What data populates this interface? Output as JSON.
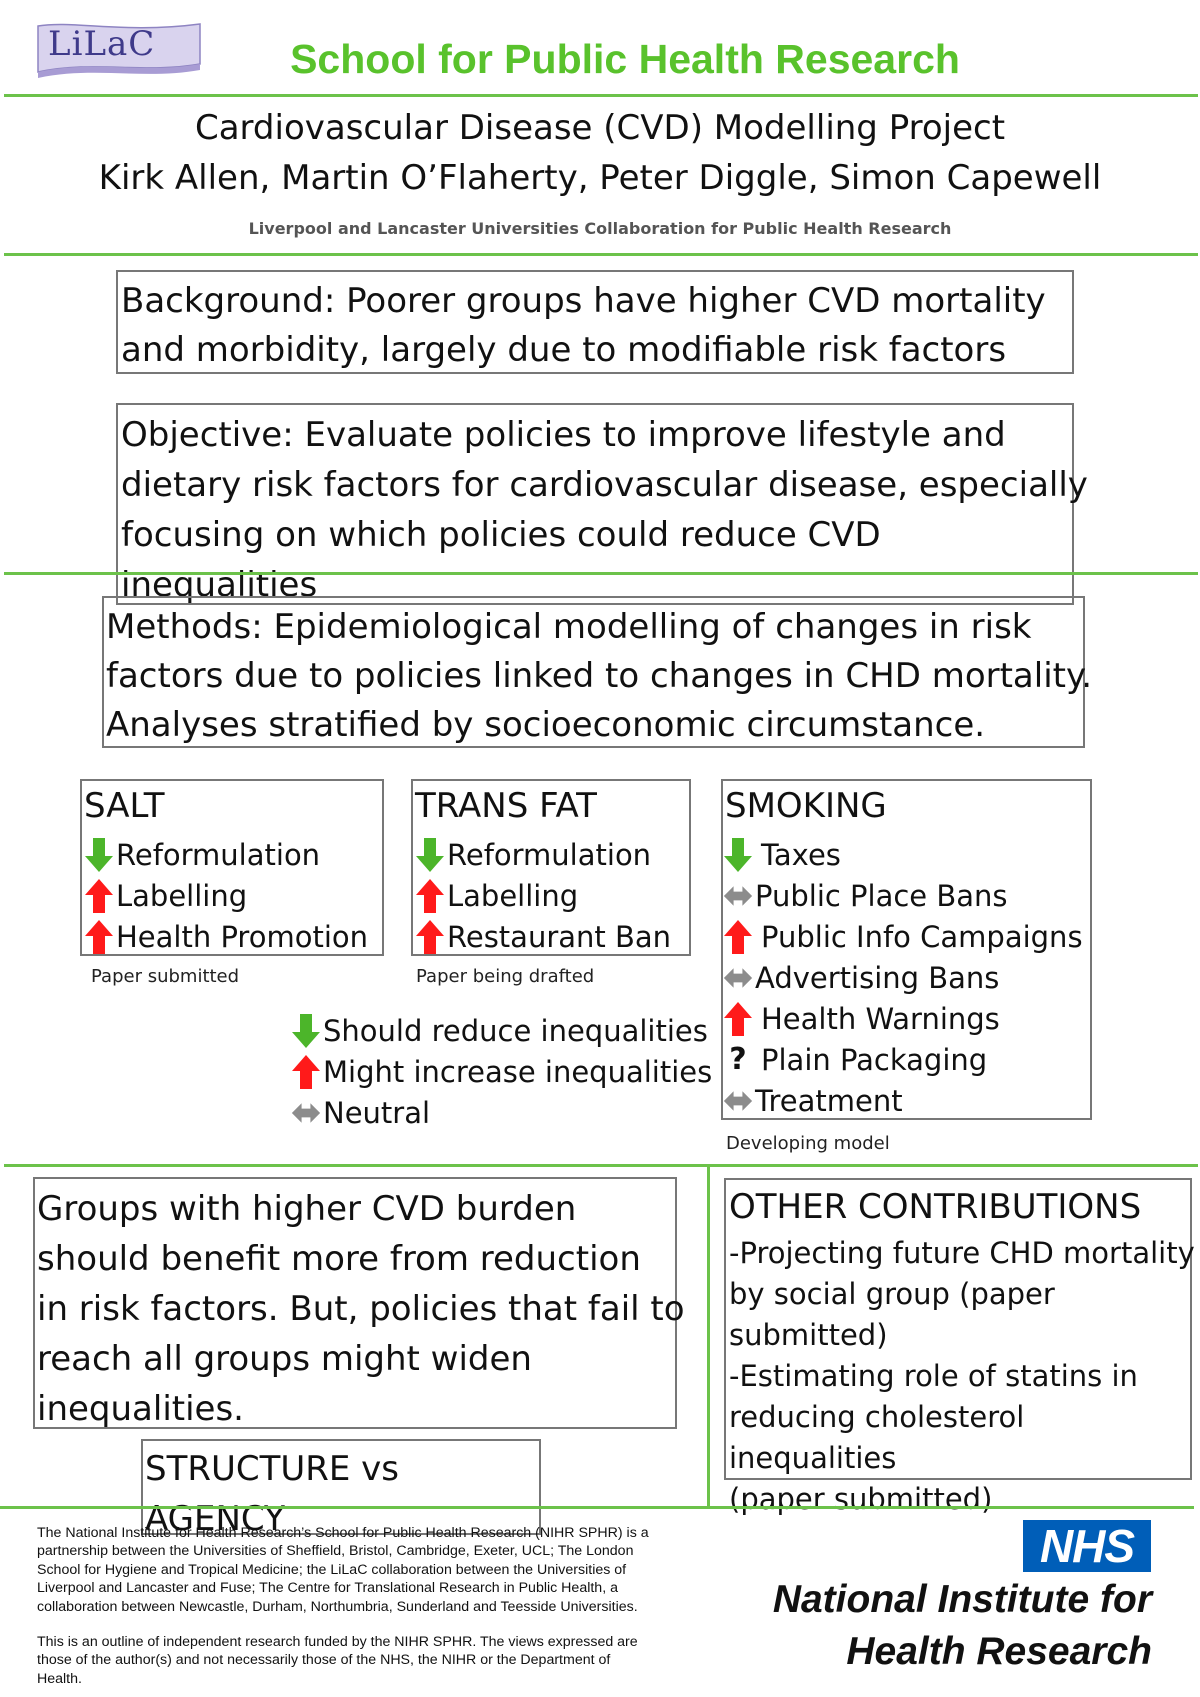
{
  "header": {
    "logo_text": "LiLaC",
    "title": "School for Public Health Research",
    "project_title": "Cardiovascular Disease (CVD) Modelling Project",
    "authors": "Kirk Allen, Martin O’Flaherty, Peter Diggle, Simon Capewell",
    "affiliation": "Liverpool and Lancaster Universities Collaboration for Public Health Research"
  },
  "background": {
    "line1": "Background: Poorer groups have higher CVD mortality",
    "line2": "and morbidity, largely due to modifiable risk factors"
  },
  "objective": {
    "line1": "Objective: Evaluate policies to improve lifestyle and",
    "line2": "dietary risk factors for cardiovascular disease, especially",
    "line3": "focusing on which policies could reduce CVD",
    "line4": "inequalities"
  },
  "methods": {
    "line1": "Methods: Epidemiological modelling of changes in risk",
    "line2": "factors due to policies linked to changes in CHD mortality.",
    "line3": "Analyses stratified by socioeconomic circumstance."
  },
  "salt": {
    "heading": "SALT",
    "items": [
      {
        "label": "Reformulation",
        "icon": "arrow-down-green-icon"
      },
      {
        "label": "Labelling",
        "icon": "arrow-up-red-icon"
      },
      {
        "label": "Health Promotion",
        "icon": "arrow-up-red-icon"
      }
    ],
    "status": "Paper submitted"
  },
  "trans_fat": {
    "heading": "TRANS FAT",
    "items": [
      {
        "label": "Reformulation",
        "icon": "arrow-down-green-icon"
      },
      {
        "label": "Labelling",
        "icon": "arrow-up-red-icon"
      },
      {
        "label": "Restaurant Ban",
        "icon": "arrow-up-red-icon"
      }
    ],
    "status": "Paper being drafted"
  },
  "smoking": {
    "heading": "SMOKING",
    "items": [
      {
        "label": "Taxes",
        "icon": "arrow-down-green-icon"
      },
      {
        "label": "Public Place Bans",
        "icon": "double-arrow-grey-icon"
      },
      {
        "label": "Public Info Campaigns",
        "icon": "arrow-up-red-icon"
      },
      {
        "label": "Advertising Bans",
        "icon": "double-arrow-grey-icon"
      },
      {
        "label": "Health Warnings",
        "icon": "arrow-up-red-icon"
      },
      {
        "label": "Plain Packaging",
        "icon": "question-mark-icon"
      },
      {
        "label": "Treatment",
        "icon": "double-arrow-grey-icon"
      }
    ],
    "status": "Developing model"
  },
  "legend": [
    {
      "label": "Should reduce inequalities",
      "icon": "arrow-down-green-icon"
    },
    {
      "label": "Might increase inequalities",
      "icon": "arrow-up-red-icon"
    },
    {
      "label": "Neutral",
      "icon": "double-arrow-grey-icon"
    }
  ],
  "groups": {
    "line1": "Groups with higher CVD burden",
    "line2": "should benefit more from reduction",
    "line3": "in risk factors. But, policies that fail to",
    "line4": "reach all groups might widen",
    "line5": "inequalities."
  },
  "other": {
    "heading": "OTHER CONTRIBUTIONS",
    "line1": "-Projecting future CHD mortality",
    "line2": "by social group (paper",
    "line3": "submitted)",
    "line4": "-Estimating role of statins in",
    "line5": "reducing cholesterol inequalities",
    "line6": "(paper submitted)"
  },
  "structure": {
    "line1": "STRUCTURE vs",
    "line2": "AGENCY"
  },
  "footer": {
    "para1": [
      "The National Institute for Health Research’s School for Public Health Research (NIHR SPHR) is a",
      "partnership between the Universities of Sheffield, Bristol, Cambridge,  Exeter, UCL; The London",
      "School for Hygiene and Tropical Medicine; the LiLaC collaboration between the Universities of",
      "Liverpool and Lancaster and Fuse; The Centre for Translational Research in Public Health, a",
      "collaboration between Newcastle, Durham, Northumbria, Sunderland and Teesside Universities."
    ],
    "para2": [
      "This is an outline of independent research funded by the NIHR SPHR. The views expressed are",
      "those of the author(s) and not necessarily those of the NHS, the NIHR or the Department of",
      "Health."
    ],
    "nhs_logo": "NHS",
    "nihr_line1": "National Institute for",
    "nihr_line2": "Health Research"
  },
  "colors": {
    "brand_green": "#59c22c",
    "rule_green": "#6cc24a",
    "arrow_green": "#4cb52a",
    "arrow_red": "#ff1a1a",
    "arrow_grey": "#8c8c8c",
    "nhs_blue": "#005eb8",
    "logo_purple": "#9b8ec9"
  }
}
